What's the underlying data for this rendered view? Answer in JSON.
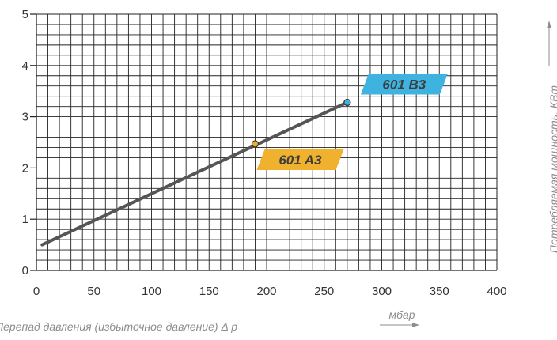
{
  "chart_data": {
    "type": "line",
    "xlabel": "Перепад давления (избыточное давление) Δ р",
    "xunit": "мбар",
    "ylabel": "Потребляемая мощность, КВт",
    "xlim": [
      0,
      400
    ],
    "ylim": [
      0,
      5
    ],
    "x_ticks": [
      0,
      50,
      100,
      150,
      200,
      250,
      300,
      350,
      400
    ],
    "y_ticks": [
      0,
      1,
      2,
      3,
      4,
      5
    ],
    "grid": true,
    "series": [
      {
        "x": [
          5,
          270
        ],
        "y": [
          0.5,
          3.28
        ],
        "color": "#555555"
      }
    ],
    "points": [
      {
        "label": "601 A3",
        "x": 190,
        "y": 2.47,
        "color": "#f0b22e"
      },
      {
        "label": "601 B3",
        "x": 270,
        "y": 3.28,
        "color": "#3fb3df"
      }
    ]
  }
}
